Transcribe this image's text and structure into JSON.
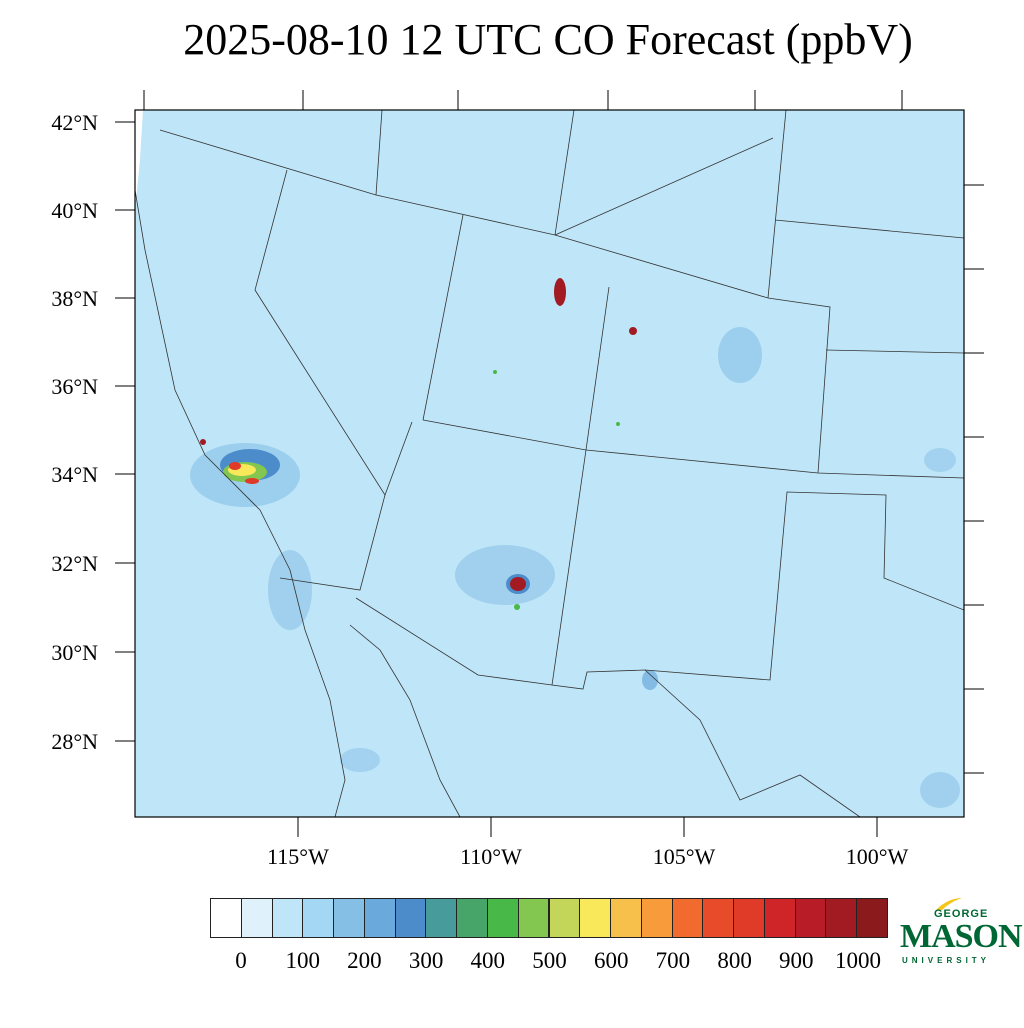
{
  "title": "2025-08-10 12 UTC CO Forecast (ppbV)",
  "lat_labels": [
    "42°N",
    "40°N",
    "38°N",
    "36°N",
    "34°N",
    "32°N",
    "30°N",
    "28°N"
  ],
  "lon_labels": [
    "115°W",
    "110°W",
    "105°W",
    "100°W"
  ],
  "colorbar": {
    "colors": [
      "#ffffff",
      "#dff1fb",
      "#bfe5f8",
      "#a3d7f3",
      "#86bfe6",
      "#69a9dc",
      "#4c8cca",
      "#479b9a",
      "#48a56a",
      "#48b848",
      "#83c650",
      "#c4d65a",
      "#f8e85a",
      "#f7c04a",
      "#f79b3b",
      "#f16a2e",
      "#e84b2a",
      "#e03a28",
      "#d02528",
      "#b81c26",
      "#a21b22",
      "#8a1a1c"
    ],
    "labels": [
      "0",
      "100",
      "200",
      "300",
      "400",
      "500",
      "600",
      "700",
      "800",
      "900",
      "1000"
    ]
  },
  "logo": {
    "line1": "GEORGE",
    "line2": "MASON",
    "line3": "UNIVERSITY"
  },
  "colors": {
    "background_field": "#bfe5f8",
    "boundary": "#333333"
  }
}
